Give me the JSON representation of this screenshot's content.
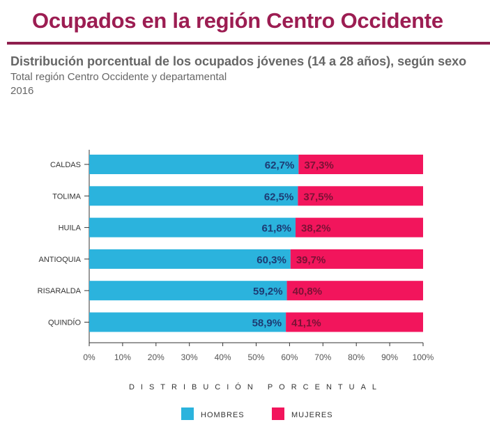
{
  "header": {
    "title": "Ocupados en la región Centro Occidente",
    "subtitle": "Distribución porcentual de los ocupados jóvenes (14 a 28 años), según sexo",
    "subtitle2": "Total región Centro Occidente y departamental",
    "year": "2016"
  },
  "chart_data": {
    "type": "bar",
    "stacked": true,
    "orientation": "horizontal",
    "categories": [
      "CALDAS",
      "TOLIMA",
      "HUILA",
      "ANTIOQUIA",
      "RISARALDA",
      "QUINDÍO"
    ],
    "series": [
      {
        "name": "HOMBRES",
        "color": "#2bb3dd",
        "label_color": "#1d3b73",
        "values": [
          62.7,
          62.5,
          61.8,
          60.3,
          59.2,
          58.9
        ],
        "labels": [
          "62,7%",
          "62,5%",
          "61,8%",
          "60,3%",
          "59,2%",
          "58,9%"
        ]
      },
      {
        "name": "MUJERES",
        "color": "#f2155c",
        "label_color": "#7a1235",
        "values": [
          37.3,
          37.5,
          38.2,
          39.7,
          40.8,
          41.1
        ],
        "labels": [
          "37,3%",
          "37,5%",
          "38,2%",
          "39,7%",
          "40,8%",
          "41,1%"
        ]
      }
    ],
    "xlim": [
      0,
      100
    ],
    "xticks": [
      "0%",
      "10%",
      "20%",
      "30%",
      "40%",
      "50%",
      "60%",
      "70%",
      "80%",
      "90%",
      "100%"
    ],
    "xlabel": "DISTRIBUCIÓN PORCENTUAL",
    "legend": "bottom"
  }
}
